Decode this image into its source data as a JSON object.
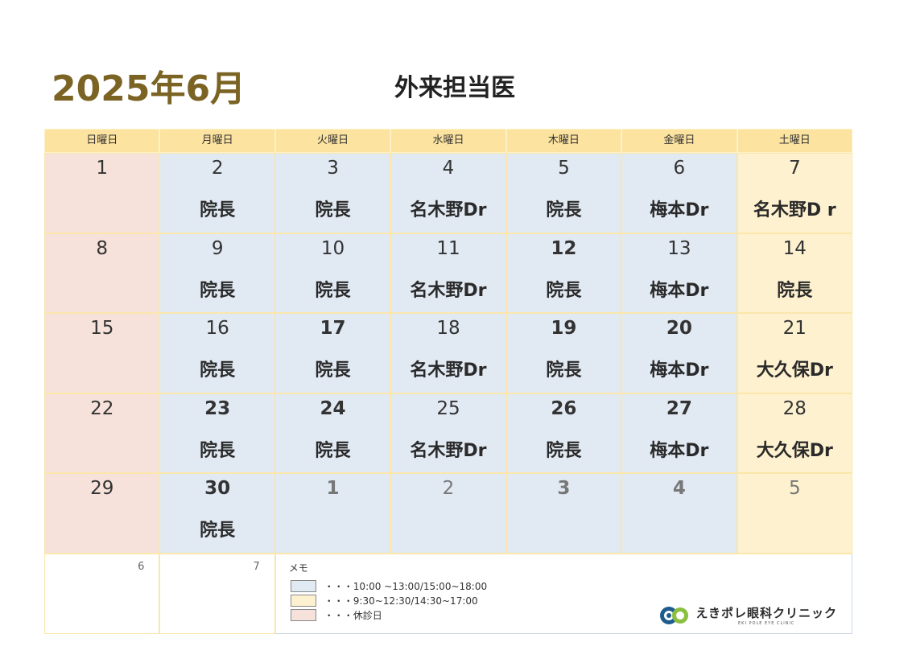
{
  "header": {
    "month_title": "2025年6月",
    "doc_title": "外来担当医"
  },
  "weekdays": [
    "日曜日",
    "月曜日",
    "火曜日",
    "水曜日",
    "木曜日",
    "金曜日",
    "土曜日"
  ],
  "weeks": [
    [
      {
        "day": "1",
        "doctor": "",
        "bold": false
      },
      {
        "day": "2",
        "doctor": "院長",
        "bold": false
      },
      {
        "day": "3",
        "doctor": "院長",
        "bold": false
      },
      {
        "day": "4",
        "doctor": "名木野Dr",
        "bold": false
      },
      {
        "day": "5",
        "doctor": "院長",
        "bold": false
      },
      {
        "day": "6",
        "doctor": "梅本Dr",
        "bold": false
      },
      {
        "day": "7",
        "doctor": "名木野D r",
        "bold": false
      }
    ],
    [
      {
        "day": "8",
        "doctor": "",
        "bold": false
      },
      {
        "day": "9",
        "doctor": "院長",
        "bold": false
      },
      {
        "day": "10",
        "doctor": "院長",
        "bold": false
      },
      {
        "day": "11",
        "doctor": "名木野Dr",
        "bold": false
      },
      {
        "day": "12",
        "doctor": "院長",
        "bold": true
      },
      {
        "day": "13",
        "doctor": "梅本Dr",
        "bold": false
      },
      {
        "day": "14",
        "doctor": "院長",
        "bold": false
      }
    ],
    [
      {
        "day": "15",
        "doctor": "",
        "bold": false
      },
      {
        "day": "16",
        "doctor": "院長",
        "bold": false
      },
      {
        "day": "17",
        "doctor": "院長",
        "bold": true
      },
      {
        "day": "18",
        "doctor": "名木野Dr",
        "bold": false
      },
      {
        "day": "19",
        "doctor": "院長",
        "bold": true
      },
      {
        "day": "20",
        "doctor": "梅本Dr",
        "bold": true
      },
      {
        "day": "21",
        "doctor": "大久保Dr",
        "bold": false
      }
    ],
    [
      {
        "day": "22",
        "doctor": "",
        "bold": false
      },
      {
        "day": "23",
        "doctor": "院長",
        "bold": true
      },
      {
        "day": "24",
        "doctor": "院長",
        "bold": true
      },
      {
        "day": "25",
        "doctor": "名木野Dr",
        "bold": false
      },
      {
        "day": "26",
        "doctor": "院長",
        "bold": true
      },
      {
        "day": "27",
        "doctor": "梅本Dr",
        "bold": true
      },
      {
        "day": "28",
        "doctor": "大久保Dr",
        "bold": false
      }
    ],
    [
      {
        "day": "29",
        "doctor": "",
        "bold": false
      },
      {
        "day": "30",
        "doctor": "院長",
        "bold": true
      },
      {
        "day": "1",
        "doctor": "",
        "bold": true,
        "next": true
      },
      {
        "day": "2",
        "doctor": "",
        "bold": false,
        "next": true
      },
      {
        "day": "3",
        "doctor": "",
        "bold": true,
        "next": true
      },
      {
        "day": "4",
        "doctor": "",
        "bold": true,
        "next": true
      },
      {
        "day": "5",
        "doctor": "",
        "bold": false,
        "next": true
      }
    ]
  ],
  "overflow_days": [
    "6",
    "7"
  ],
  "memo": {
    "title": "メモ",
    "legend": [
      {
        "text": "・・・10:00 ~13:00/15:00~18:00",
        "color": "#e1e9f3"
      },
      {
        "text": "・・・9:30~12:30/14:30~17:00",
        "color": "#fdf1cf"
      },
      {
        "text": "・・・休診日",
        "color": "#f6e2da"
      }
    ]
  },
  "logo": {
    "name": "えきポレ眼科クリニック",
    "sub": "EKI POLE EYE CLINIC",
    "icon": "eye-logo-icon"
  },
  "colors": {
    "title": "#7a6323",
    "header_bg": "#fce3a0",
    "sunday_bg": "#f6e2da",
    "weekday_bg": "#e1e9f3",
    "saturday_bg": "#fdf1cf"
  }
}
